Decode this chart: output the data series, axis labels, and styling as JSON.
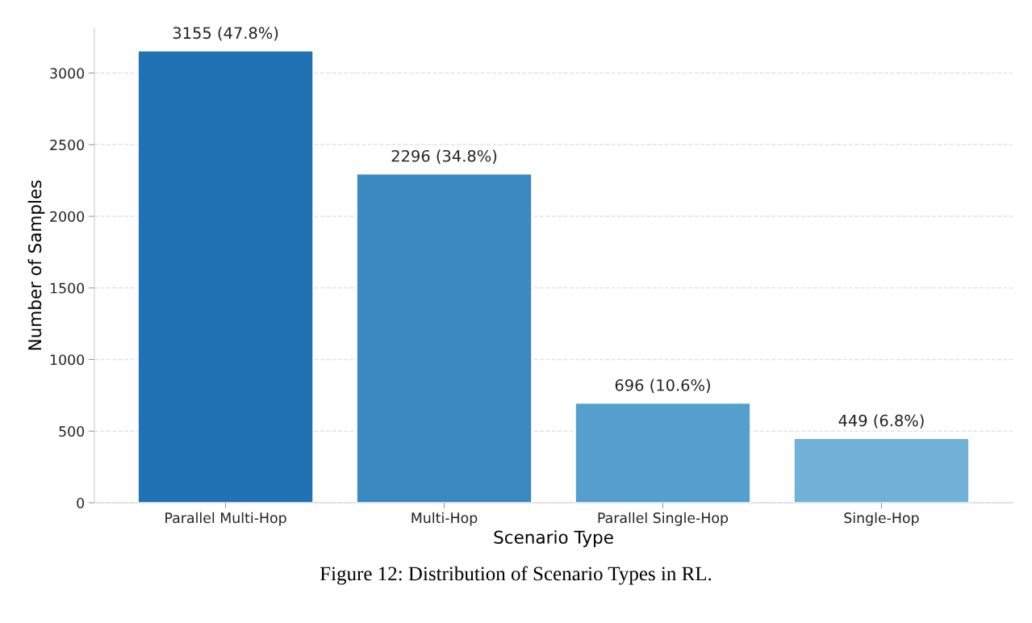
{
  "chart_data": {
    "type": "bar",
    "categories": [
      "Parallel Multi-Hop",
      "Multi-Hop",
      "Parallel Single-Hop",
      "Single-Hop"
    ],
    "values": [
      3155,
      2296,
      696,
      449
    ],
    "colors": [
      "#2171b5",
      "#3a89c1",
      "#549fcd",
      "#72b1d8"
    ],
    "value_labels": [
      "3155 (47.8%)",
      "2296 (34.8%)",
      "696 (10.6%)",
      "449 (6.8%)"
    ],
    "xlabel": "Scenario Type",
    "ylabel": "Number of Samples",
    "ylim": [
      0,
      3313
    ],
    "yticks": [
      0,
      500,
      1000,
      1500,
      2000,
      2500,
      3000
    ],
    "grid": "y",
    "annotations": [
      "Figure 12: Distribution of Scenario Types in RL."
    ]
  }
}
